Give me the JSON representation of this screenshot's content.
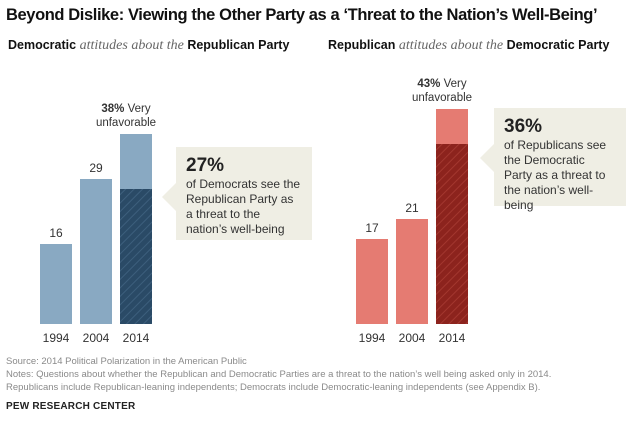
{
  "title": "Beyond Dislike: Viewing the Other Party as a ‘Threat to the Nation’s Well-Being’",
  "subtitles": {
    "left": {
      "a": "Democratic",
      "b": " attitudes about the ",
      "c": "Republican Party"
    },
    "right": {
      "a": "Republican",
      "b": " attitudes about the ",
      "c": "Democratic Party"
    }
  },
  "chart_data": [
    {
      "type": "bar",
      "title": "Democratic attitudes about the Republican Party",
      "categories": [
        "1994",
        "2004",
        "2014"
      ],
      "values": [
        16,
        29,
        38
      ],
      "value_labels": [
        "16",
        "29",
        ""
      ],
      "top_label_bold": "38%",
      "top_label_rest": " Very",
      "top_label_line2": "unfavorable",
      "threat_value": 27,
      "color": "#89a9c2",
      "threat_color": "#2a4a66",
      "callout": {
        "big": "27%",
        "text": "of Democrats see the Republican Party as a threat to the nation’s well-being"
      }
    },
    {
      "type": "bar",
      "title": "Republican attitudes about the Democratic Party",
      "categories": [
        "1994",
        "2004",
        "2014"
      ],
      "values": [
        17,
        21,
        43
      ],
      "value_labels": [
        "17",
        "21",
        ""
      ],
      "top_label_bold": "43%",
      "top_label_rest": " Very",
      "top_label_line2": "unfavorable",
      "threat_value": 36,
      "color": "#e57b72",
      "threat_color": "#8c231d",
      "callout": {
        "big": "36%",
        "text": "of Republicans see the Democratic Party as a threat to the nation’s well-being"
      }
    }
  ],
  "footer": {
    "source": "Source: 2014 Political Polarization in the American Public",
    "notes_1": "Notes: Questions about whether the Republican and Democratic Parties are a threat to the nation’s well being asked only in 2014.",
    "notes_2": "Republicans include Republican-leaning independents; Democrats include Democratic-leaning independents (see Appendix B).",
    "org": "PEW RESEARCH CENTER"
  }
}
